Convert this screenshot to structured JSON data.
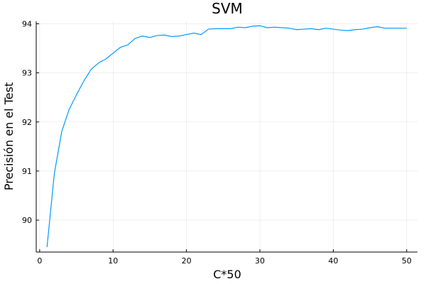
{
  "chart_data": {
    "type": "line",
    "title": "SVM",
    "xlabel": "C*50",
    "ylabel": "Precisión en el Test",
    "xlim": [
      -0.47,
      51.47
    ],
    "ylim": [
      89.35,
      94.05
    ],
    "xticks": [
      0,
      10,
      20,
      30,
      40,
      50
    ],
    "yticks": [
      90,
      91,
      92,
      93,
      94
    ],
    "xtick_labels": [
      "0",
      "10",
      "20",
      "30",
      "40",
      "50"
    ],
    "ytick_labels": [
      "90",
      "91",
      "92",
      "93",
      "94"
    ],
    "grid": true,
    "legend": "none",
    "series": [
      {
        "color": "#009AFA",
        "x": [
          1,
          2,
          3,
          4,
          5,
          6,
          7,
          8,
          9,
          10,
          11,
          12,
          13,
          14,
          15,
          16,
          17,
          18,
          19,
          20,
          21,
          22,
          23,
          24,
          25,
          26,
          27,
          28,
          29,
          30,
          31,
          32,
          33,
          34,
          35,
          36,
          37,
          38,
          39,
          40,
          41,
          42,
          43,
          44,
          45,
          46,
          47,
          48,
          49,
          50
        ],
        "y": [
          89.45,
          90.95,
          91.8,
          92.25,
          92.55,
          92.83,
          93.07,
          93.2,
          93.28,
          93.4,
          93.52,
          93.57,
          93.7,
          93.75,
          93.72,
          93.76,
          93.77,
          93.74,
          93.75,
          93.78,
          93.81,
          93.78,
          93.89,
          93.9,
          93.9,
          93.9,
          93.93,
          93.92,
          93.95,
          93.96,
          93.92,
          93.93,
          93.92,
          93.91,
          93.88,
          93.89,
          93.9,
          93.88,
          93.91,
          93.89,
          93.87,
          93.86,
          93.88,
          93.89,
          93.92,
          93.94,
          93.91,
          93.91,
          93.91,
          93.91
        ]
      }
    ]
  }
}
